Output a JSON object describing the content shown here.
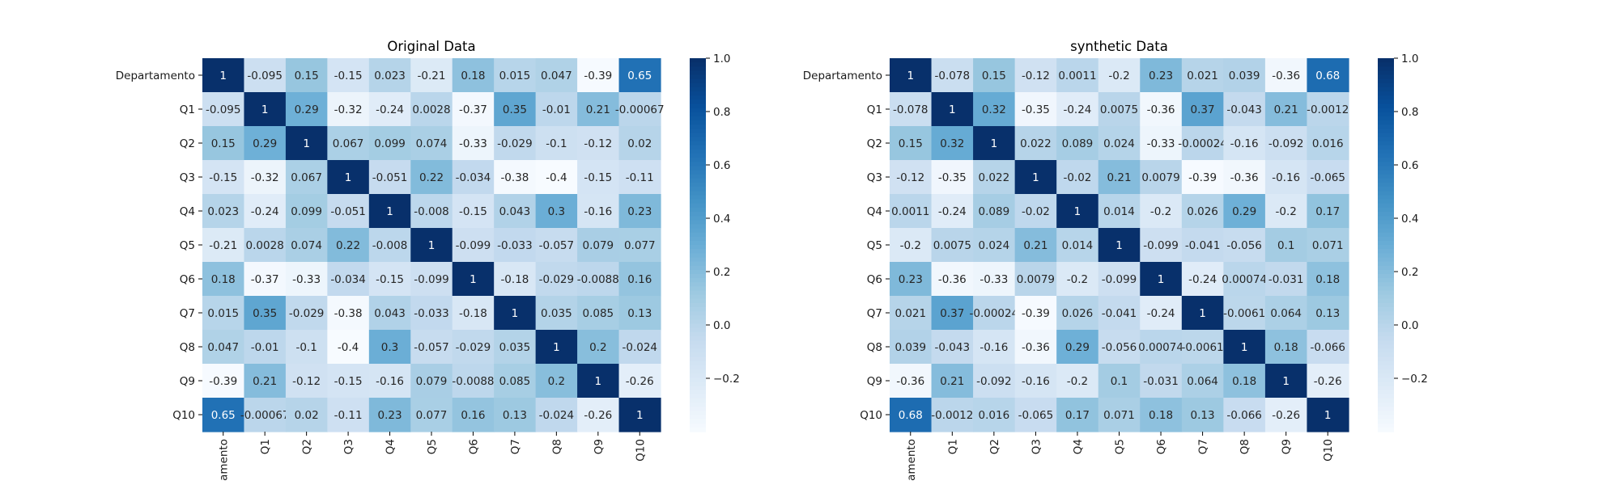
{
  "chart_data": [
    {
      "type": "heatmap",
      "title": "Original Data",
      "row_labels": [
        "Departamento",
        "Q1",
        "Q2",
        "Q3",
        "Q4",
        "Q5",
        "Q6",
        "Q7",
        "Q8",
        "Q9",
        "Q10"
      ],
      "col_labels": [
        "amento",
        "Q1",
        "Q2",
        "Q3",
        "Q4",
        "Q5",
        "Q6",
        "Q7",
        "Q8",
        "Q9",
        "Q10"
      ],
      "values": [
        [
          1,
          -0.095,
          0.15,
          -0.15,
          0.023,
          -0.21,
          0.18,
          0.015,
          0.047,
          -0.39,
          0.65
        ],
        [
          -0.095,
          1,
          0.29,
          -0.32,
          -0.24,
          0.0028,
          -0.37,
          0.35,
          -0.01,
          0.21,
          -0.00067
        ],
        [
          0.15,
          0.29,
          1,
          0.067,
          0.099,
          0.074,
          -0.33,
          -0.029,
          -0.1,
          -0.12,
          0.02
        ],
        [
          -0.15,
          -0.32,
          0.067,
          1,
          -0.051,
          0.22,
          -0.034,
          -0.38,
          -0.4,
          -0.15,
          -0.11
        ],
        [
          0.023,
          -0.24,
          0.099,
          -0.051,
          1,
          -0.008,
          -0.15,
          0.043,
          0.3,
          -0.16,
          0.23
        ],
        [
          -0.21,
          0.0028,
          0.074,
          0.22,
          -0.008,
          1,
          -0.099,
          -0.033,
          -0.057,
          0.079,
          0.077
        ],
        [
          0.18,
          -0.37,
          -0.33,
          -0.034,
          -0.15,
          -0.099,
          1,
          -0.18,
          -0.029,
          -0.0088,
          0.16
        ],
        [
          0.015,
          0.35,
          -0.029,
          -0.38,
          0.043,
          -0.033,
          -0.18,
          1,
          0.035,
          0.085,
          0.13
        ],
        [
          0.047,
          -0.01,
          -0.1,
          -0.4,
          0.3,
          -0.057,
          -0.029,
          0.035,
          1,
          0.2,
          -0.024
        ],
        [
          -0.39,
          0.21,
          -0.12,
          -0.15,
          -0.16,
          0.079,
          -0.0088,
          0.085,
          0.2,
          1,
          -0.26
        ],
        [
          0.65,
          -0.00067,
          0.02,
          -0.11,
          0.23,
          0.077,
          0.16,
          0.13,
          -0.024,
          -0.26,
          1
        ]
      ],
      "colormap": "Blues",
      "colorbar_ticks": [
        1.0,
        0.8,
        0.6,
        0.4,
        0.2,
        0.0,
        -0.2
      ],
      "colorbar_tick_labels": [
        "1.0",
        "0.8",
        "0.6",
        "0.4",
        "0.2",
        "0.0",
        "−0.2"
      ],
      "vmin": -0.4,
      "vmax": 1.0
    },
    {
      "type": "heatmap",
      "title": "synthetic Data",
      "row_labels": [
        "Departamento",
        "Q1",
        "Q2",
        "Q3",
        "Q4",
        "Q5",
        "Q6",
        "Q7",
        "Q8",
        "Q9",
        "Q10"
      ],
      "col_labels": [
        "amento",
        "Q1",
        "Q2",
        "Q3",
        "Q4",
        "Q5",
        "Q6",
        "Q7",
        "Q8",
        "Q9",
        "Q10"
      ],
      "values": [
        [
          1,
          -0.078,
          0.15,
          -0.12,
          0.0011,
          -0.2,
          0.23,
          0.021,
          0.039,
          -0.36,
          0.68
        ],
        [
          -0.078,
          1,
          0.32,
          -0.35,
          -0.24,
          0.0075,
          -0.36,
          0.37,
          -0.043,
          0.21,
          -0.0012
        ],
        [
          0.15,
          0.32,
          1,
          0.022,
          0.089,
          0.024,
          -0.33,
          -0.00024,
          -0.16,
          -0.092,
          0.016
        ],
        [
          -0.12,
          -0.35,
          0.022,
          1,
          -0.02,
          0.21,
          0.0079,
          -0.39,
          -0.36,
          -0.16,
          -0.065
        ],
        [
          0.0011,
          -0.24,
          0.089,
          -0.02,
          1,
          0.014,
          -0.2,
          0.026,
          0.29,
          -0.2,
          0.17
        ],
        [
          -0.2,
          0.0075,
          0.024,
          0.21,
          0.014,
          1,
          -0.099,
          -0.041,
          -0.056,
          0.1,
          0.071
        ],
        [
          0.23,
          -0.36,
          -0.33,
          0.0079,
          -0.2,
          -0.099,
          1,
          -0.24,
          0.00074,
          -0.031,
          0.18
        ],
        [
          0.021,
          0.37,
          -0.00024,
          -0.39,
          0.026,
          -0.041,
          -0.24,
          1,
          -0.0061,
          0.064,
          0.13
        ],
        [
          0.039,
          -0.043,
          -0.16,
          -0.36,
          0.29,
          -0.056,
          0.00074,
          -0.0061,
          1,
          0.18,
          -0.066
        ],
        [
          -0.36,
          0.21,
          -0.092,
          -0.16,
          -0.2,
          0.1,
          -0.031,
          0.064,
          0.18,
          1,
          -0.26
        ],
        [
          0.68,
          -0.0012,
          0.016,
          -0.065,
          0.17,
          0.071,
          0.18,
          0.13,
          -0.066,
          -0.26,
          1
        ]
      ],
      "colormap": "Blues",
      "colorbar_ticks": [
        1.0,
        0.8,
        0.6,
        0.4,
        0.2,
        0.0,
        -0.2
      ],
      "colorbar_tick_labels": [
        "1.0",
        "0.8",
        "0.6",
        "0.4",
        "0.2",
        "0.0",
        "−0.2"
      ],
      "vmin": -0.4,
      "vmax": 1.0
    }
  ],
  "colors": {
    "cmap_stops": [
      "#f7fbff",
      "#deebf7",
      "#c6dbef",
      "#9ecae1",
      "#6baed6",
      "#4292c6",
      "#2171b5",
      "#08519c",
      "#08306b"
    ],
    "text_dark": "#262626",
    "text_light": "#ffffff"
  }
}
